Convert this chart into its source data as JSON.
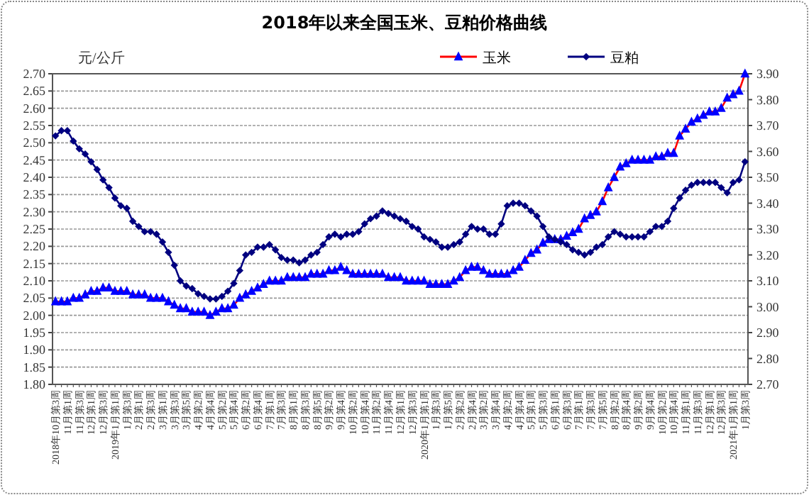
{
  "chart_data": {
    "type": "line",
    "title": "2018年以来全国玉米、豆粕价格曲线",
    "ylabel": "元/公斤",
    "categories": [
      "2018年10月第3周",
      null,
      "11月第1周",
      null,
      "11月第3周",
      null,
      "12月第1周",
      null,
      "12月第3周",
      null,
      "2019年1月第1周",
      null,
      "1月第3周",
      null,
      "2月第1周",
      null,
      "2月第3周",
      null,
      "3月第1周",
      null,
      "3月第3周",
      null,
      "3月第5周",
      null,
      "4月第2周",
      null,
      "4月第4周",
      null,
      "5月第2周",
      null,
      "5月第4周",
      null,
      "6月第2周",
      null,
      "6月第4周",
      null,
      "7月第1周",
      null,
      "7月第3周",
      null,
      "8月第1周",
      null,
      "8月第3周",
      null,
      "8月第5周",
      null,
      "9月第2周",
      null,
      "9月第4周",
      null,
      "10月第2周",
      null,
      "10月第4周",
      null,
      "11月第2周",
      null,
      "11月第4周",
      null,
      "12月第1周",
      null,
      "12月第3周",
      null,
      "2020年1月第1周",
      null,
      "1月第3周",
      null,
      "1月第5周",
      null,
      "2月第2周",
      null,
      "2月第4周",
      null,
      "3月第2周",
      null,
      "3月第4周",
      null,
      "4月第2周",
      null,
      "4月第4周",
      null,
      "5月第1周",
      null,
      "5月第3周",
      null,
      "6月第1周",
      null,
      "6月第3周",
      null,
      "7月第1周",
      null,
      "7月第3周",
      null,
      "7月第5周",
      null,
      "8月第2周",
      null,
      "8月第4周",
      null,
      "9月第2周",
      null,
      "9月第4周",
      null,
      "10月第2周",
      null,
      "10月第4周",
      null,
      "11月第1周",
      null,
      "11月第3周",
      null,
      "12月第1周",
      null,
      "12月第3周",
      null,
      "2021年1月第1周",
      null,
      "1月第3周"
    ],
    "series": [
      {
        "name": "玉米",
        "color": "#ff0000",
        "marker": "triangle",
        "values": [
          2.04,
          2.04,
          2.04,
          2.05,
          2.05,
          2.06,
          2.07,
          2.07,
          2.08,
          2.08,
          2.07,
          2.07,
          2.07,
          2.06,
          2.06,
          2.06,
          2.05,
          2.05,
          2.05,
          2.04,
          2.03,
          2.02,
          2.02,
          2.01,
          2.01,
          2.01,
          2.0,
          2.01,
          2.02,
          2.02,
          2.03,
          2.05,
          2.06,
          2.07,
          2.08,
          2.09,
          2.1,
          2.1,
          2.1,
          2.11,
          2.11,
          2.11,
          2.11,
          2.12,
          2.12,
          2.12,
          2.13,
          2.13,
          2.14,
          2.13,
          2.12,
          2.12,
          2.12,
          2.12,
          2.12,
          2.12,
          2.11,
          2.11,
          2.11,
          2.1,
          2.1,
          2.1,
          2.1,
          2.09,
          2.09,
          2.09,
          2.09,
          2.1,
          2.11,
          2.13,
          2.14,
          2.14,
          2.13,
          2.12,
          2.12,
          2.12,
          2.12,
          2.13,
          2.14,
          2.16,
          2.18,
          2.19,
          2.21,
          2.22,
          2.22,
          2.22,
          2.23,
          2.24,
          2.25,
          2.28,
          2.29,
          2.3,
          2.33,
          2.37,
          2.4,
          2.43,
          2.44,
          2.45,
          2.45,
          2.45,
          2.45,
          2.46,
          2.46,
          2.47,
          2.47,
          2.52,
          2.54,
          2.56,
          2.57,
          2.58,
          2.59,
          2.59,
          2.6,
          2.63,
          2.64,
          2.65,
          2.7
        ]
      },
      {
        "name": "豆粕",
        "color": "#000080",
        "marker": "diamond",
        "axis": "y2",
        "values": [
          3.66,
          3.68,
          3.68,
          3.64,
          3.61,
          3.59,
          3.56,
          3.53,
          3.49,
          3.46,
          3.42,
          3.39,
          3.38,
          3.33,
          3.31,
          3.29,
          3.29,
          3.28,
          3.25,
          3.21,
          3.16,
          3.1,
          3.08,
          3.07,
          3.05,
          3.04,
          3.03,
          3.03,
          3.04,
          3.06,
          3.09,
          3.14,
          3.2,
          3.21,
          3.23,
          3.23,
          3.24,
          3.22,
          3.19,
          3.18,
          3.18,
          3.17,
          3.18,
          3.2,
          3.21,
          3.24,
          3.27,
          3.28,
          3.27,
          3.28,
          3.28,
          3.29,
          3.32,
          3.34,
          3.35,
          3.37,
          3.36,
          3.35,
          3.34,
          3.33,
          3.31,
          3.3,
          3.27,
          3.26,
          3.25,
          3.23,
          3.23,
          3.24,
          3.25,
          3.28,
          3.31,
          3.3,
          3.3,
          3.28,
          3.28,
          3.32,
          3.39,
          3.4,
          3.4,
          3.39,
          3.37,
          3.35,
          3.31,
          3.27,
          3.26,
          3.25,
          3.24,
          3.22,
          3.21,
          3.2,
          3.21,
          3.23,
          3.24,
          3.27,
          3.29,
          3.28,
          3.27,
          3.27,
          3.27,
          3.27,
          3.29,
          3.31,
          3.31,
          3.33,
          3.38,
          3.42,
          3.45,
          3.47,
          3.48,
          3.48,
          3.48,
          3.48,
          3.46,
          3.44,
          3.48,
          3.49,
          3.56
        ]
      }
    ],
    "ylim": [
      1.8,
      2.7
    ],
    "yticks": [
      {
        "value": 1.8,
        "label": "1.80"
      },
      {
        "value": 1.85,
        "label": "1.85"
      },
      {
        "value": 1.9,
        "label": "1.90"
      },
      {
        "value": 1.95,
        "label": "1.95"
      },
      {
        "value": 2.0,
        "label": "2.00"
      },
      {
        "value": 2.05,
        "label": "2.05"
      },
      {
        "value": 2.1,
        "label": "2.10"
      },
      {
        "value": 2.15,
        "label": "2.15"
      },
      {
        "value": 2.2,
        "label": "2.20"
      },
      {
        "value": 2.25,
        "label": "2.25"
      },
      {
        "value": 2.3,
        "label": "2.30"
      },
      {
        "value": 2.35,
        "label": "2.35"
      },
      {
        "value": 2.4,
        "label": "2.40"
      },
      {
        "value": 2.45,
        "label": "2.45"
      },
      {
        "value": 2.5,
        "label": "2.50"
      },
      {
        "value": 2.55,
        "label": "2.55"
      },
      {
        "value": 2.6,
        "label": "2.60"
      },
      {
        "value": 2.65,
        "label": "2.65"
      },
      {
        "value": 2.7,
        "label": "2.70"
      }
    ],
    "y2lim": [
      2.7,
      3.9
    ],
    "y2ticks": [
      {
        "value": 2.7,
        "label": "2.70"
      },
      {
        "value": 2.8,
        "label": "2.80"
      },
      {
        "value": 2.9,
        "label": "2.90"
      },
      {
        "value": 3.0,
        "label": "3.00"
      },
      {
        "value": 3.1,
        "label": "3.10"
      },
      {
        "value": 3.2,
        "label": "3.20"
      },
      {
        "value": 3.3,
        "label": "3.30"
      },
      {
        "value": 3.4,
        "label": "3.40"
      },
      {
        "value": 3.5,
        "label": "3.50"
      },
      {
        "value": 3.6,
        "label": "3.60"
      },
      {
        "value": 3.7,
        "label": "3.70"
      },
      {
        "value": 3.8,
        "label": "3.80"
      },
      {
        "value": 3.9,
        "label": "3.90"
      }
    ],
    "grid": "y",
    "legend": "top right",
    "line_style": "solid"
  }
}
